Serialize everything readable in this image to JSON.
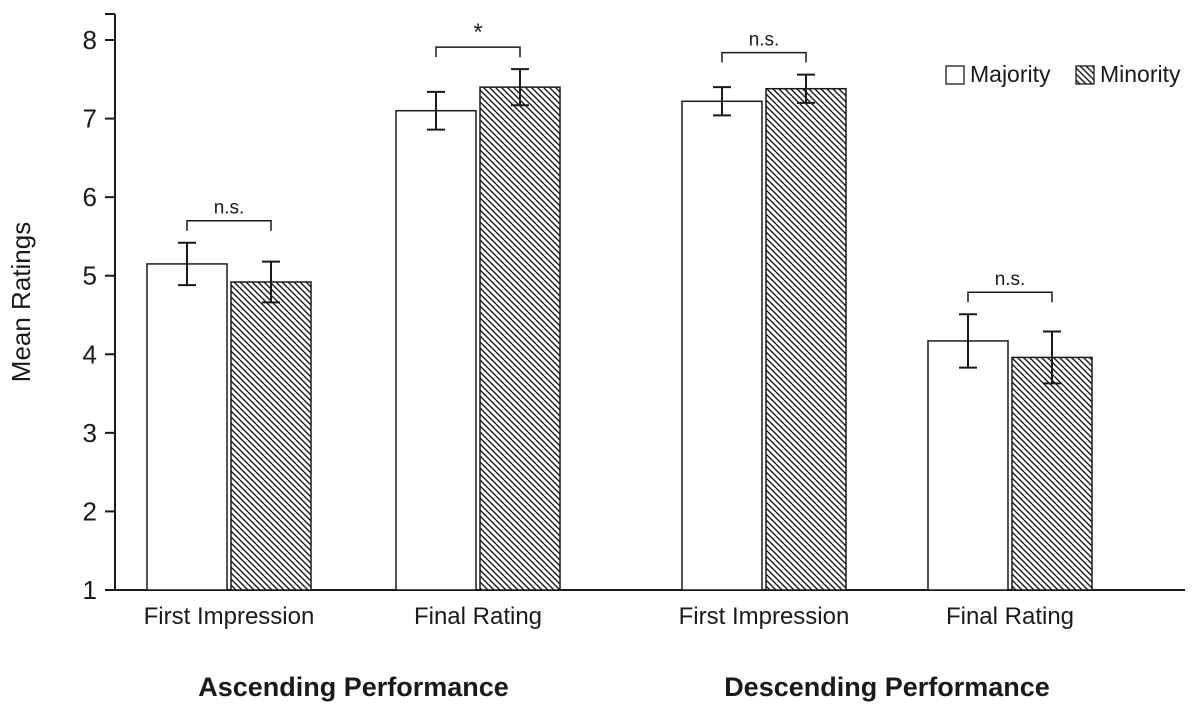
{
  "chart_data": {
    "type": "bar",
    "title": "",
    "ylabel": "Mean Ratings",
    "ylim": [
      1,
      8
    ],
    "yticks": [
      1,
      2,
      3,
      4,
      5,
      6,
      7,
      8
    ],
    "bar_baseline": 1,
    "grid": false,
    "categories": [
      "First Impression",
      "Final Rating",
      "First Impression",
      "Final Rating"
    ],
    "series": [
      {
        "name": "Majority",
        "fill": "white",
        "values": [
          5.15,
          7.1,
          7.22,
          4.17
        ],
        "errors": [
          0.27,
          0.24,
          0.18,
          0.34
        ]
      },
      {
        "name": "Minority",
        "fill": "hatched",
        "values": [
          4.92,
          7.4,
          7.38,
          3.96
        ],
        "errors": [
          0.26,
          0.23,
          0.18,
          0.33
        ]
      }
    ],
    "significance": [
      "n.s.",
      "*",
      "n.s.",
      "n.s."
    ],
    "panel_labels": [
      "Ascending Performance",
      "Descending Performance"
    ],
    "panel_of_category": [
      0,
      0,
      1,
      1
    ],
    "legend": {
      "position": "top-right",
      "entries": [
        "Majority",
        "Minority"
      ]
    },
    "colors": {
      "axis": "#1a1a1a",
      "bar_stroke": "#1a1a1a",
      "bar_fill_majority": "#ffffff",
      "hatch_line": "#1a1a1a",
      "text": "#1a1a1a"
    }
  }
}
